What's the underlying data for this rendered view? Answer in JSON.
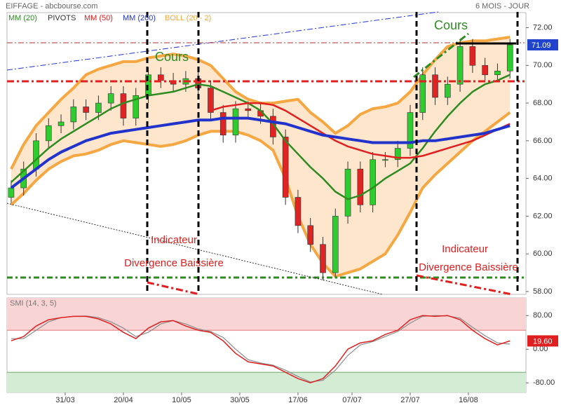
{
  "chart_data": [
    {
      "type": "candlestick",
      "title": "EIFFAGE - abcbourse.com",
      "subtitle": "6 MOIS - JOUR",
      "pivots_label": "PIVOTS",
      "x": [
        1,
        4,
        7,
        10,
        13,
        16,
        19,
        22,
        25,
        28,
        31,
        34,
        37,
        40,
        43,
        46,
        49,
        52,
        55,
        58,
        61,
        64,
        67,
        70,
        73,
        76,
        79,
        82,
        85,
        88,
        91,
        94,
        97,
        100,
        103,
        106,
        109,
        112,
        115,
        118,
        121
      ],
      "candles": [
        [
          63,
          63.9,
          62.7,
          63.5
        ],
        [
          63.5,
          64.9,
          63.1,
          64.5
        ],
        [
          64.5,
          66.4,
          64.1,
          66
        ],
        [
          66,
          67.2,
          65.6,
          66.8
        ],
        [
          66.8,
          67.4,
          66.4,
          67
        ],
        [
          67,
          68.2,
          66.6,
          67.8
        ],
        [
          67.8,
          68.2,
          67.1,
          67.5
        ],
        [
          67.5,
          68.4,
          67.1,
          68
        ],
        [
          68,
          68.9,
          67.6,
          68.5
        ],
        [
          68.5,
          68.9,
          66.8,
          67.2
        ],
        [
          67.2,
          68.8,
          66.8,
          68.4
        ],
        [
          68.4,
          69.9,
          68,
          69.5
        ],
        [
          69.5,
          69.9,
          68.8,
          69.2
        ],
        [
          69.2,
          69.6,
          68.6,
          69
        ],
        [
          69,
          69.7,
          68.6,
          69.3
        ],
        [
          69.3,
          69.7,
          68.4,
          68.8
        ],
        [
          68.8,
          69.2,
          67.1,
          67.5
        ],
        [
          67.5,
          67.9,
          65.9,
          66.3
        ],
        [
          66.3,
          68.1,
          65.9,
          67.7
        ],
        [
          67.7,
          68.1,
          67.2,
          67.6
        ],
        [
          67.6,
          68,
          66.9,
          67.3
        ],
        [
          67.3,
          67.7,
          65.8,
          66.2
        ],
        [
          66.2,
          66.6,
          62.6,
          63
        ],
        [
          63,
          63.4,
          61.1,
          61.5
        ],
        [
          61.5,
          61.9,
          60.1,
          60.5
        ],
        [
          60.5,
          60.9,
          58.6,
          59
        ],
        [
          59,
          62.4,
          58.7,
          62
        ],
        [
          62,
          64.9,
          61.6,
          64.5
        ],
        [
          64.5,
          64.9,
          62.2,
          62.6
        ],
        [
          62.6,
          65.4,
          62.2,
          65
        ],
        [
          65,
          65.4,
          64.6,
          65
        ],
        [
          65,
          66,
          64.6,
          65.6
        ],
        [
          65.6,
          67.9,
          65.2,
          67.5
        ],
        [
          67.5,
          69.9,
          67.1,
          69.5
        ],
        [
          69.5,
          69.9,
          67.9,
          68.3
        ],
        [
          68.3,
          69.4,
          67.9,
          69
        ],
        [
          69,
          71.4,
          68.6,
          71
        ],
        [
          71,
          71.4,
          69.6,
          70
        ],
        [
          70,
          70.4,
          69.1,
          69.5
        ],
        [
          69.5,
          70.1,
          69.1,
          69.7
        ],
        [
          69.7,
          71.4,
          69.3,
          71.09
        ]
      ],
      "up_color": "#2ecc2e",
      "down_color": "#e02424",
      "series": [
        {
          "name": "MM (20)",
          "color": "#2e8b22",
          "values": [
            63.8,
            64.4,
            65,
            65.6,
            66.1,
            66.5,
            66.9,
            67.3,
            67.7,
            68,
            68.2,
            68.4,
            68.5,
            68.6,
            68.8,
            69,
            68.9,
            68.6,
            68.3,
            68,
            67.6,
            66.9,
            66,
            65.3,
            64.6,
            64,
            63.3,
            62.9,
            63.1,
            63.5,
            64,
            64.4,
            64.8,
            65.6,
            66.5,
            67.3,
            68,
            68.6,
            69,
            69.2,
            69.5
          ]
        },
        {
          "name": "MM (50)",
          "color": "#e02020",
          "values": [
            null,
            null,
            null,
            null,
            null,
            null,
            null,
            null,
            null,
            null,
            null,
            null,
            null,
            null,
            null,
            null,
            67.6,
            67.8,
            67.9,
            68,
            68,
            67.9,
            67.6,
            67.2,
            66.8,
            66.4,
            66,
            65.7,
            65.5,
            65.3,
            65.2,
            65.1,
            65.1,
            65.2,
            65.4,
            65.6,
            65.8,
            66,
            66.3,
            66.6,
            66.9
          ]
        },
        {
          "name": "MM (200)",
          "color": "#2233cc",
          "values": [
            63.5,
            64,
            64.5,
            65,
            65.4,
            65.7,
            66,
            66.2,
            66.4,
            66.5,
            66.6,
            66.7,
            66.8,
            66.9,
            67,
            67.1,
            67.1,
            67.2,
            67.2,
            67.2,
            67.1,
            67,
            66.9,
            66.7,
            66.5,
            66.3,
            66.2,
            66.1,
            66,
            65.9,
            65.9,
            65.9,
            65.9,
            66,
            66,
            66.1,
            66.2,
            66.3,
            66.4,
            66.6,
            66.8
          ]
        }
      ],
      "bollinger": {
        "name": "BOLL (20 - 2)",
        "color": "#f5a742",
        "fill": "#fde6cc",
        "upper": [
          64.5,
          65.8,
          66.8,
          67.5,
          68.2,
          68.8,
          69.5,
          69.8,
          70,
          70.2,
          70.2,
          70.4,
          70.5,
          70.6,
          70.5,
          70.3,
          70,
          69.3,
          68.6,
          68.2,
          68,
          68,
          68.1,
          68.2,
          67.5,
          67,
          66.4,
          66.8,
          67.4,
          67.7,
          67.8,
          68,
          68.6,
          69.5,
          70.3,
          71,
          71.2,
          71.3,
          71.3,
          71.4,
          71.5
        ],
        "lower": [
          62.6,
          63.2,
          63.9,
          64.5,
          64.9,
          65.2,
          65.3,
          65.5,
          65.8,
          66,
          65.9,
          65.8,
          65.7,
          65.8,
          66,
          66.3,
          66.5,
          66.5,
          66.5,
          66.3,
          66,
          65.5,
          64,
          62,
          60.5,
          59.5,
          58.8,
          59,
          59.2,
          59.6,
          60,
          61,
          62.2,
          63.5,
          64.2,
          64.8,
          65.4,
          66,
          66.5,
          67,
          67.5
        ]
      },
      "annotations": [
        "Cours",
        "Cours",
        "Indicateur",
        "Divergence Baissière",
        "Indicateur",
        "Divergence Baissière"
      ],
      "xlim": [
        0,
        124
      ],
      "xticks": [
        {
          "value": 14,
          "label": "31/03"
        },
        {
          "value": 28,
          "label": "20/04"
        },
        {
          "value": 42,
          "label": "10/05"
        },
        {
          "value": 56,
          "label": "30/05"
        },
        {
          "value": 70,
          "label": "17/06"
        },
        {
          "value": 83,
          "label": "07/07"
        },
        {
          "value": 97,
          "label": "27/07"
        },
        {
          "value": 111,
          "label": "16/08"
        }
      ],
      "ylim": [
        57.85,
        72.8
      ],
      "yticks": [
        {
          "value": 58,
          "label": "58.00"
        },
        {
          "value": 60,
          "label": "60.00"
        },
        {
          "value": 62,
          "label": "62.00"
        },
        {
          "value": 64,
          "label": "64.00"
        },
        {
          "value": 66,
          "label": "66.00"
        },
        {
          "value": 68,
          "label": "68.00"
        },
        {
          "value": 70,
          "label": "70.00"
        },
        {
          "value": 72,
          "label": "72.00"
        }
      ]
    },
    {
      "type": "line",
      "title": "SMI (14, 3, 5)",
      "x": [
        1,
        4,
        7,
        10,
        13,
        16,
        19,
        22,
        25,
        28,
        31,
        34,
        37,
        40,
        43,
        46,
        49,
        52,
        55,
        58,
        61,
        64,
        67,
        70,
        73,
        76,
        79,
        82,
        85,
        88,
        91,
        94,
        97,
        100,
        103,
        106,
        109,
        112,
        115,
        118,
        121
      ],
      "series": [
        {
          "color": "#8c8c8c",
          "values": [
            25,
            25,
            45,
            65,
            75,
            78,
            79,
            75,
            65,
            50,
            30,
            40,
            60,
            68,
            60,
            48,
            42,
            28,
            0,
            -25,
            -33,
            -38,
            -50,
            -65,
            -78,
            -74,
            -50,
            -15,
            10,
            18,
            30,
            42,
            62,
            78,
            80,
            79,
            74,
            52,
            32,
            15,
            12
          ]
        },
        {
          "color": "#e02020",
          "last_label": "19.60",
          "values": [
            20,
            30,
            55,
            70,
            75,
            78,
            78,
            72,
            60,
            40,
            25,
            50,
            65,
            68,
            55,
            45,
            40,
            20,
            -10,
            -30,
            -35,
            -40,
            -55,
            -70,
            -80,
            -70,
            -40,
            0,
            15,
            20,
            35,
            45,
            70,
            80,
            78,
            80,
            70,
            45,
            25,
            10,
            19.6
          ]
        }
      ],
      "overbought": 45,
      "oversold": -55,
      "xlim": [
        0,
        124
      ],
      "ylim": [
        -103,
        122
      ],
      "yticks": [
        {
          "value": 80,
          "label": "80.00"
        },
        {
          "value": 0,
          "label": "0.00"
        },
        {
          "value": -80,
          "label": "-80.00"
        }
      ]
    }
  ]
}
